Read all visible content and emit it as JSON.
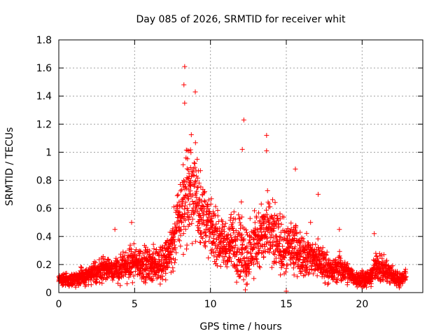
{
  "chart_data": {
    "type": "scatter",
    "title": "Day 085 of 2026, SRMTID for receiver whit",
    "xlabel": "GPS time / hours",
    "ylabel": "SRMTID / TECUs",
    "xlim": [
      0,
      24
    ],
    "ylim": [
      0,
      1.8
    ],
    "xticks": [
      0,
      5,
      10,
      15,
      20
    ],
    "xtick_labels": [
      "0",
      "5",
      "10",
      "15",
      "20"
    ],
    "yticks": [
      0,
      0.2,
      0.4,
      0.6,
      0.8,
      1,
      1.2,
      1.4,
      1.6,
      1.8
    ],
    "ytick_labels": [
      "0",
      "0.2",
      "0.4",
      "0.6",
      "0.8",
      "1",
      "1.2",
      "1.4",
      "1.6",
      "1.8"
    ],
    "grid": true,
    "marker": "plus",
    "series": [
      {
        "name": "SRMTID",
        "color": "#ff0000",
        "envelope_hours": [
          0,
          1,
          2,
          3,
          4,
          5,
          6,
          7,
          7.5,
          8,
          8.5,
          9,
          9.5,
          10,
          10.5,
          11,
          11.5,
          12,
          12.5,
          13,
          13.5,
          14,
          14.5,
          15,
          15.5,
          16,
          16.5,
          17,
          17.5,
          18,
          18.5,
          19,
          19.5,
          20,
          20.5,
          21,
          21.5,
          22,
          22.5,
          22.9
        ],
        "envelope_median": [
          0.09,
          0.1,
          0.12,
          0.18,
          0.16,
          0.22,
          0.2,
          0.22,
          0.34,
          0.55,
          0.75,
          0.72,
          0.55,
          0.45,
          0.38,
          0.32,
          0.36,
          0.34,
          0.25,
          0.38,
          0.42,
          0.4,
          0.36,
          0.3,
          0.34,
          0.28,
          0.26,
          0.24,
          0.2,
          0.15,
          0.18,
          0.14,
          0.1,
          0.1,
          0.1,
          0.2,
          0.16,
          0.12,
          0.09,
          0.13
        ],
        "envelope_spread": [
          0.03,
          0.05,
          0.06,
          0.08,
          0.09,
          0.1,
          0.1,
          0.12,
          0.16,
          0.25,
          0.35,
          0.3,
          0.22,
          0.18,
          0.16,
          0.15,
          0.18,
          0.22,
          0.18,
          0.2,
          0.22,
          0.2,
          0.18,
          0.16,
          0.17,
          0.14,
          0.13,
          0.12,
          0.1,
          0.07,
          0.09,
          0.07,
          0.05,
          0.05,
          0.05,
          0.11,
          0.08,
          0.06,
          0.04,
          0.04
        ],
        "notable_points": [
          {
            "x": 8.3,
            "y": 1.61
          },
          {
            "x": 8.25,
            "y": 1.48
          },
          {
            "x": 9.0,
            "y": 1.43
          },
          {
            "x": 8.3,
            "y": 1.35
          },
          {
            "x": 12.2,
            "y": 1.23
          },
          {
            "x": 13.7,
            "y": 1.12
          },
          {
            "x": 12.1,
            "y": 1.02
          },
          {
            "x": 13.7,
            "y": 1.01
          },
          {
            "x": 15.6,
            "y": 0.88
          },
          {
            "x": 17.1,
            "y": 0.7
          },
          {
            "x": 16.6,
            "y": 0.5
          },
          {
            "x": 18.5,
            "y": 0.45
          },
          {
            "x": 20.8,
            "y": 0.42
          },
          {
            "x": 4.8,
            "y": 0.5
          },
          {
            "x": 3.7,
            "y": 0.45
          },
          {
            "x": 12.3,
            "y": 0.02
          },
          {
            "x": 15.0,
            "y": 0.01
          }
        ]
      }
    ]
  }
}
